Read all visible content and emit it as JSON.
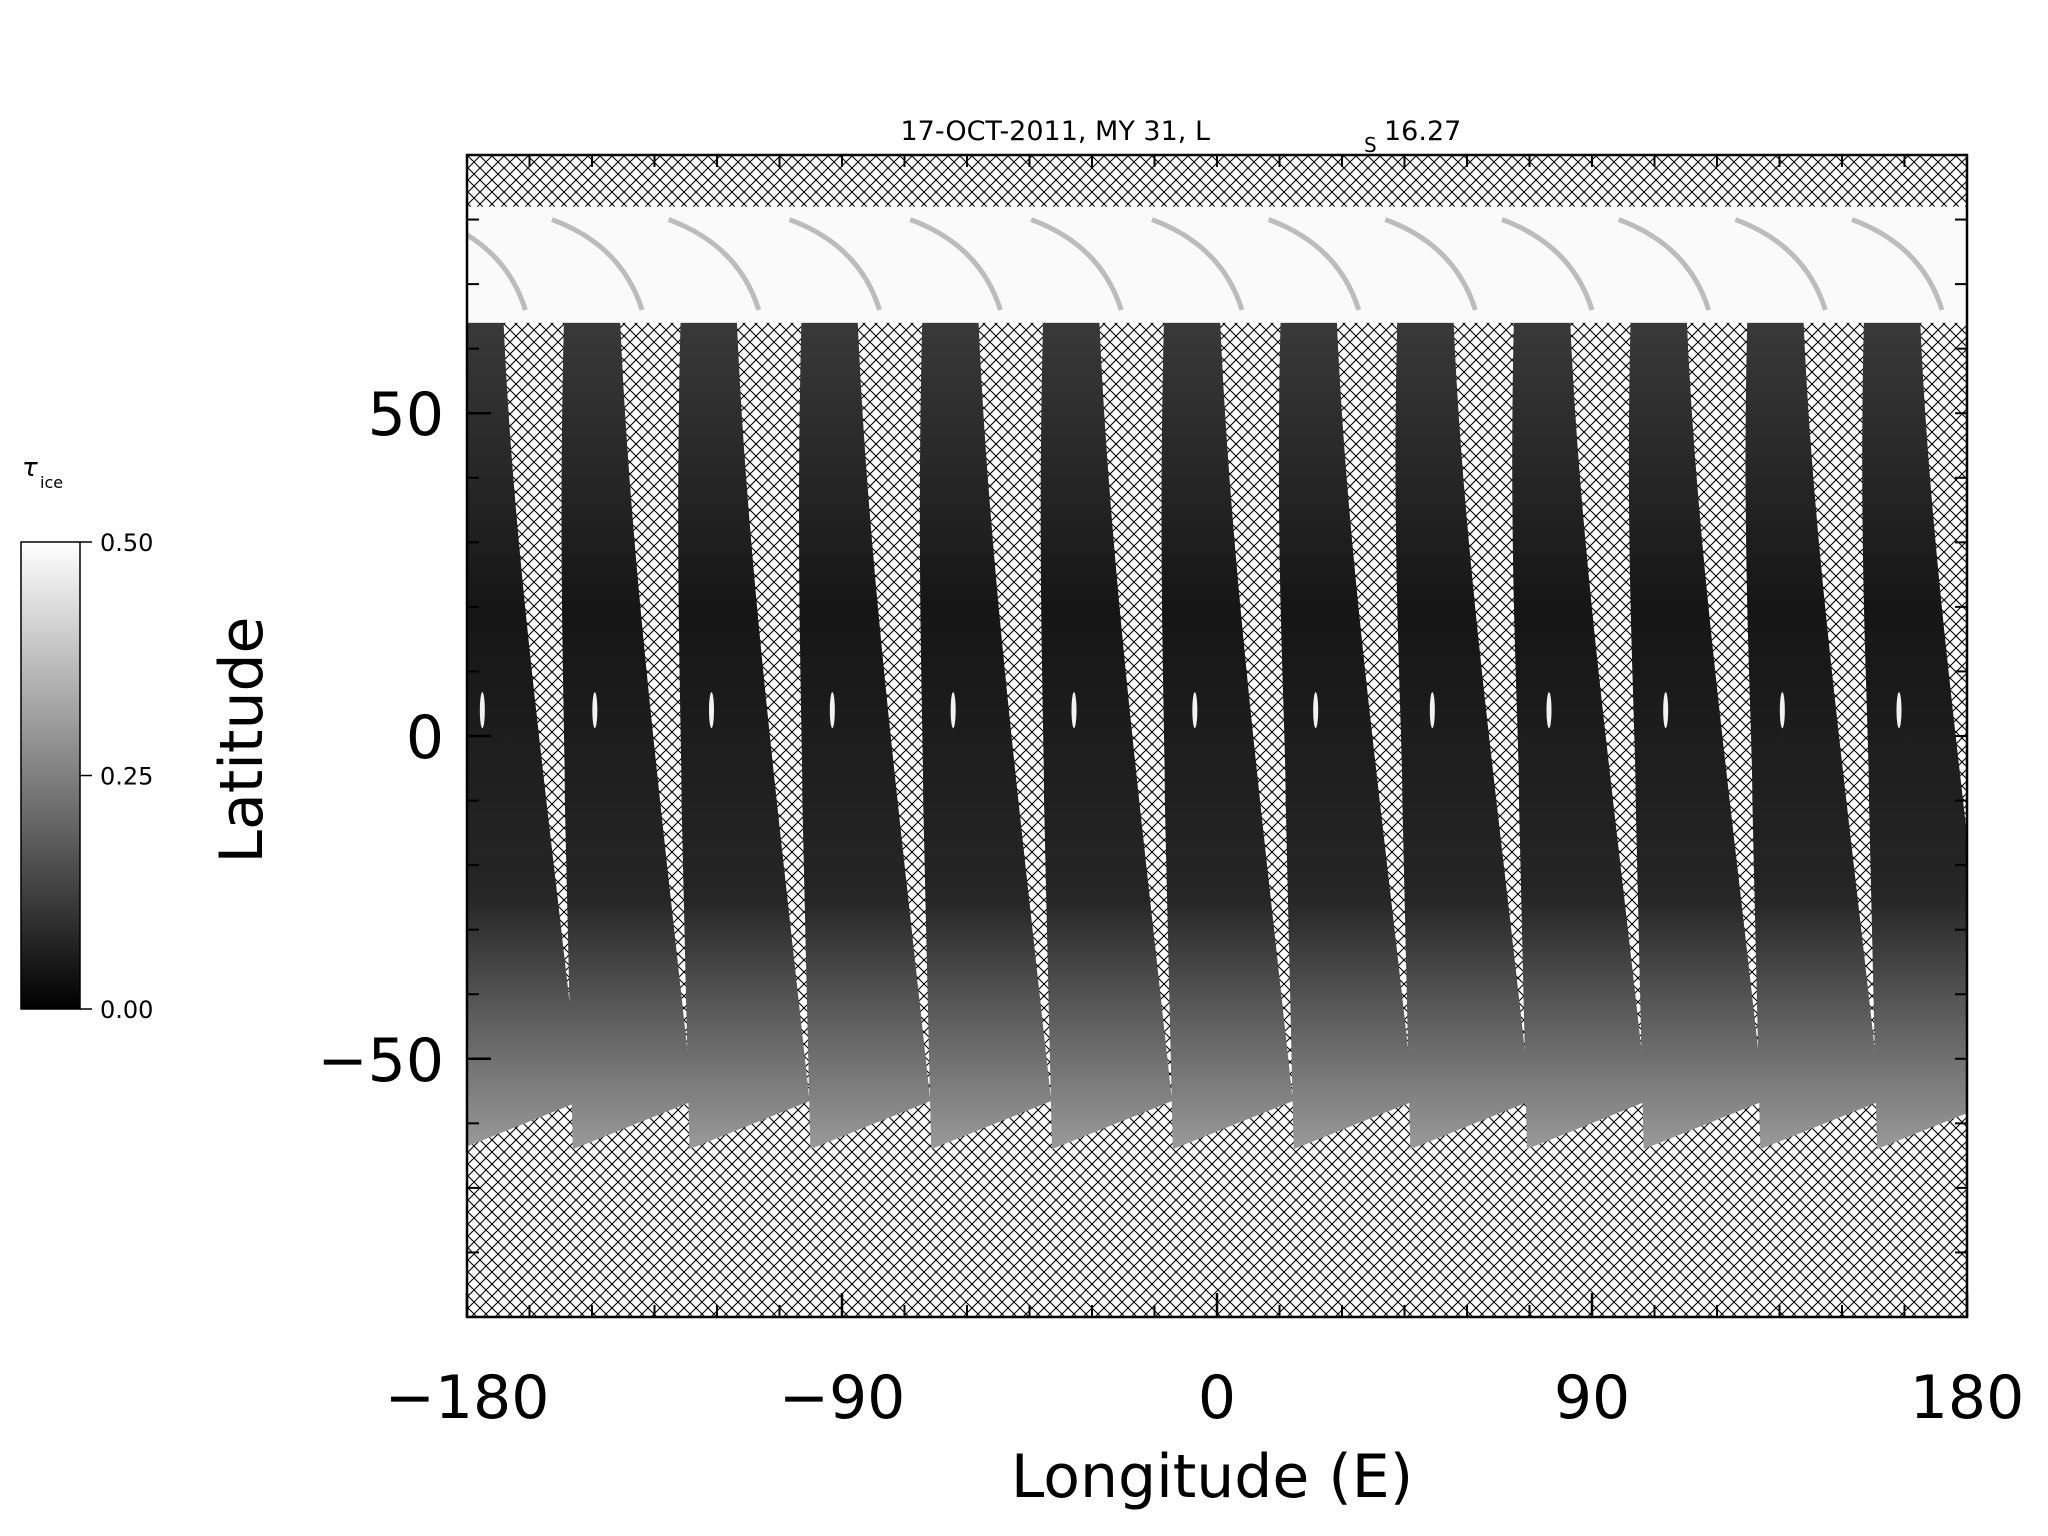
{
  "chart_data": {
    "type": "heatmap",
    "title": "17-OCT-2011, MY 31,  L",
    "title_subscript": "S",
    "title_value": "16.27",
    "xlabel": "Longitude (E)",
    "ylabel": "Latitude",
    "xlim": [
      -180,
      180
    ],
    "ylim": [
      -90,
      90
    ],
    "xticks": [
      {
        "value": -180,
        "label": "−180"
      },
      {
        "value": -90,
        "label": "−90"
      },
      {
        "value": 0,
        "label": "0"
      },
      {
        "value": 90,
        "label": "90"
      },
      {
        "value": 180,
        "label": "180"
      }
    ],
    "yticks": [
      {
        "value": 50,
        "label": "50"
      },
      {
        "value": 0,
        "label": "0"
      },
      {
        "value": -50,
        "label": "−50"
      }
    ],
    "colorbar": {
      "label": "τ",
      "label_subscript": "ice",
      "range": [
        0.0,
        0.5
      ],
      "ticks": [
        {
          "value": 0.5,
          "label": "0.50"
        },
        {
          "value": 0.25,
          "label": "0.25"
        },
        {
          "value": 0.0,
          "label": "0.00"
        }
      ],
      "colormap": [
        "#000000",
        "#ffffff"
      ]
    },
    "no_data_fill": "cross-hatch",
    "swaths": [
      {
        "lon_north": -178,
        "lon_south": -172
      },
      {
        "lon_north": -150,
        "lon_south": -145
      },
      {
        "lon_north": -122,
        "lon_south": -117
      },
      {
        "lon_north": -93,
        "lon_south": -88
      },
      {
        "lon_north": -64,
        "lon_south": -59
      },
      {
        "lon_north": -35,
        "lon_south": -30
      },
      {
        "lon_north": -6,
        "lon_south": -1
      },
      {
        "lon_north": 22,
        "lon_south": 28
      },
      {
        "lon_north": 50,
        "lon_south": 56
      },
      {
        "lon_north": 78,
        "lon_south": 84
      },
      {
        "lon_north": 106,
        "lon_south": 112
      },
      {
        "lon_north": 134,
        "lon_south": 140
      },
      {
        "lon_north": 162,
        "lon_south": 168
      }
    ]
  }
}
